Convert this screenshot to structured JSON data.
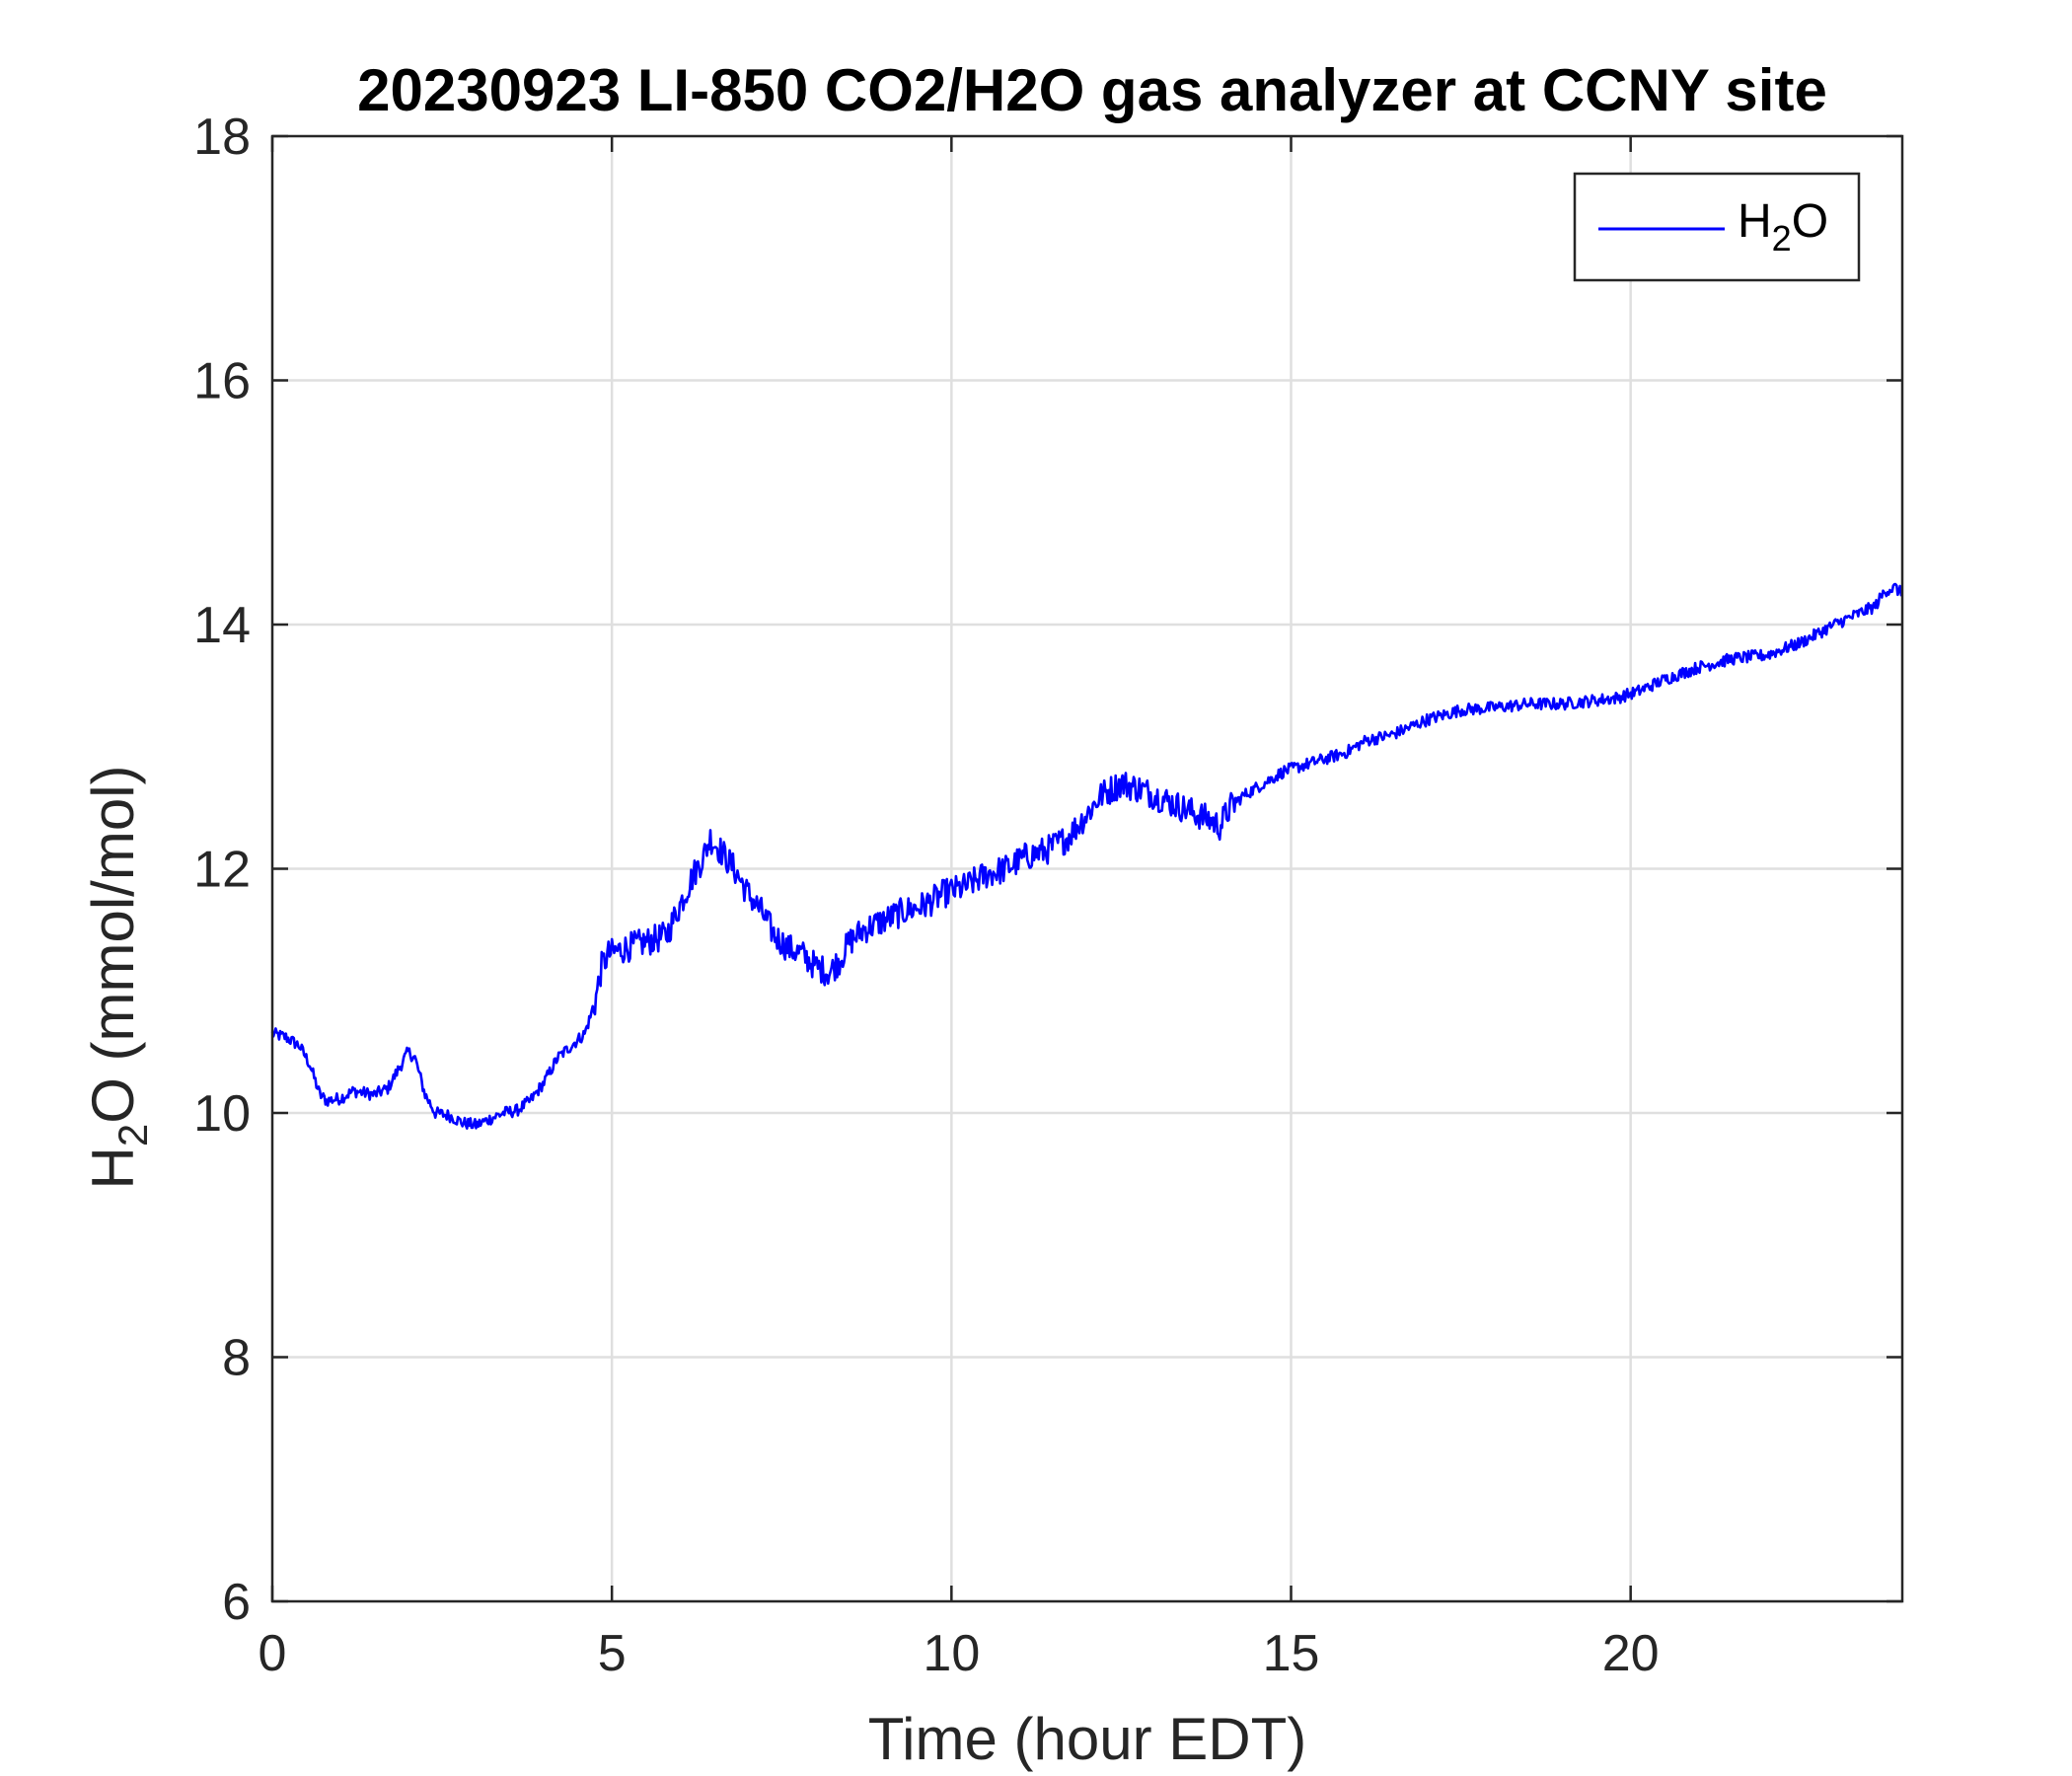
{
  "chart_data": {
    "type": "line",
    "title": "20230923 LI-850 CO2/H2O gas analyzer at CCNY site",
    "xlabel": "Time (hour EDT)",
    "ylabel": {
      "base": "H",
      "subscript": "2",
      "rest": "O (mmol/mol)"
    },
    "xlim": [
      0,
      24
    ],
    "ylim": [
      6,
      18
    ],
    "xticks": [
      0,
      5,
      10,
      15,
      20
    ],
    "yticks": [
      6,
      8,
      10,
      12,
      14,
      16,
      18
    ],
    "grid": true,
    "legend_position": "top-right",
    "series": [
      {
        "name": {
          "base": "H",
          "subscript": "2",
          "rest": "O"
        },
        "color": "#0000ff",
        "x": [
          0,
          0.2,
          0.4,
          0.55,
          0.7,
          0.8,
          1.0,
          1.2,
          1.5,
          1.7,
          1.85,
          2.0,
          2.1,
          2.25,
          2.4,
          2.6,
          2.8,
          3.0,
          3.2,
          3.4,
          3.6,
          3.8,
          4.0,
          4.2,
          4.4,
          4.6,
          4.75,
          4.85,
          4.95,
          5.2,
          5.5,
          5.8,
          6.0,
          6.2,
          6.35,
          6.45,
          6.6,
          6.8,
          7.0,
          7.2,
          7.4,
          7.6,
          7.8,
          8.0,
          8.2,
          8.35,
          8.5,
          8.7,
          8.9,
          9.1,
          9.3,
          9.6,
          9.9,
          10.2,
          10.5,
          10.8,
          11.1,
          11.4,
          11.7,
          12.0,
          12.2,
          12.5,
          12.8,
          13.0,
          13.2,
          13.4,
          13.6,
          13.8,
          13.95,
          14.1,
          14.3,
          14.6,
          14.9,
          15.2,
          15.5,
          15.8,
          16.1,
          16.5,
          17.0,
          17.5,
          18.0,
          18.5,
          19.0,
          19.5,
          19.8,
          20.1,
          20.5,
          21.0,
          21.5,
          22.0,
          22.5,
          23.0,
          23.4,
          23.6,
          23.75,
          23.9,
          24.0
        ],
        "values": [
          10.65,
          10.62,
          10.55,
          10.4,
          10.15,
          10.1,
          10.12,
          10.18,
          10.15,
          10.2,
          10.35,
          10.5,
          10.45,
          10.15,
          10.0,
          9.98,
          9.92,
          9.9,
          9.95,
          10.0,
          10.02,
          10.1,
          10.25,
          10.45,
          10.55,
          10.65,
          10.9,
          11.2,
          11.3,
          11.35,
          11.4,
          11.45,
          11.7,
          11.95,
          12.1,
          12.25,
          12.15,
          12.0,
          11.8,
          11.65,
          11.45,
          11.35,
          11.3,
          11.2,
          11.15,
          11.25,
          11.4,
          11.5,
          11.55,
          11.6,
          11.65,
          11.7,
          11.8,
          11.85,
          11.95,
          12.0,
          12.1,
          12.15,
          12.25,
          12.45,
          12.6,
          12.7,
          12.65,
          12.6,
          12.55,
          12.5,
          12.45,
          12.4,
          12.35,
          12.5,
          12.6,
          12.7,
          12.8,
          12.85,
          12.9,
          12.95,
          13.05,
          13.1,
          13.22,
          13.3,
          13.32,
          13.35,
          13.35,
          13.38,
          13.4,
          13.45,
          13.55,
          13.65,
          13.72,
          13.75,
          13.85,
          14.0,
          14.1,
          14.15,
          14.28,
          14.3,
          14.25
        ]
      }
    ]
  }
}
